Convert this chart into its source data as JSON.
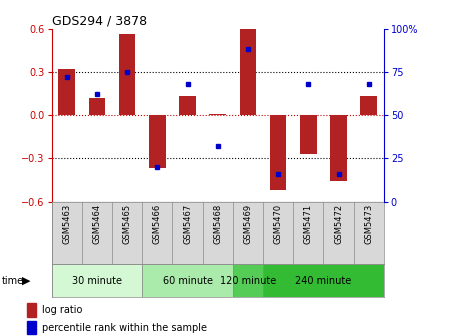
{
  "title": "GDS294 / 3878",
  "samples": [
    "GSM5463",
    "GSM5464",
    "GSM5465",
    "GSM5466",
    "GSM5467",
    "GSM5468",
    "GSM5469",
    "GSM5470",
    "GSM5471",
    "GSM5472",
    "GSM5473"
  ],
  "log_ratio": [
    0.32,
    0.12,
    0.56,
    -0.37,
    0.13,
    0.01,
    0.6,
    -0.52,
    -0.27,
    -0.46,
    0.13
  ],
  "percentile": [
    72,
    62,
    75,
    20,
    68,
    32,
    88,
    16,
    68,
    16,
    68
  ],
  "bar_color": "#B22222",
  "dot_color": "#0000CD",
  "ylim": [
    -0.6,
    0.6
  ],
  "y2lim": [
    0,
    100
  ],
  "yticks": [
    -0.6,
    -0.3,
    0,
    0.3,
    0.6
  ],
  "y2ticks": [
    0,
    25,
    50,
    75,
    100
  ],
  "hlines": [
    0.3,
    0.0,
    -0.3
  ],
  "hline_colors": [
    "black",
    "#CC0000",
    "black"
  ],
  "hline_styles": [
    "dotted",
    "dotted",
    "dotted"
  ],
  "groups": [
    {
      "label": "30 minute",
      "start": 0,
      "end": 3,
      "color": "#d4f7d4"
    },
    {
      "label": "60 minute",
      "start": 3,
      "end": 6,
      "color": "#aaeaaa"
    },
    {
      "label": "120 minute",
      "start": 6,
      "end": 7,
      "color": "#55cc55"
    },
    {
      "label": "240 minute",
      "start": 7,
      "end": 11,
      "color": "#33bb33"
    }
  ],
  "time_label": "time",
  "legend_log_ratio": "log ratio",
  "legend_percentile": "percentile rank within the sample",
  "axis_left_color": "#CC0000",
  "axis_right_color": "#0000CD",
  "sample_box_color": "#d8d8d8",
  "sample_box_edge": "#888888"
}
